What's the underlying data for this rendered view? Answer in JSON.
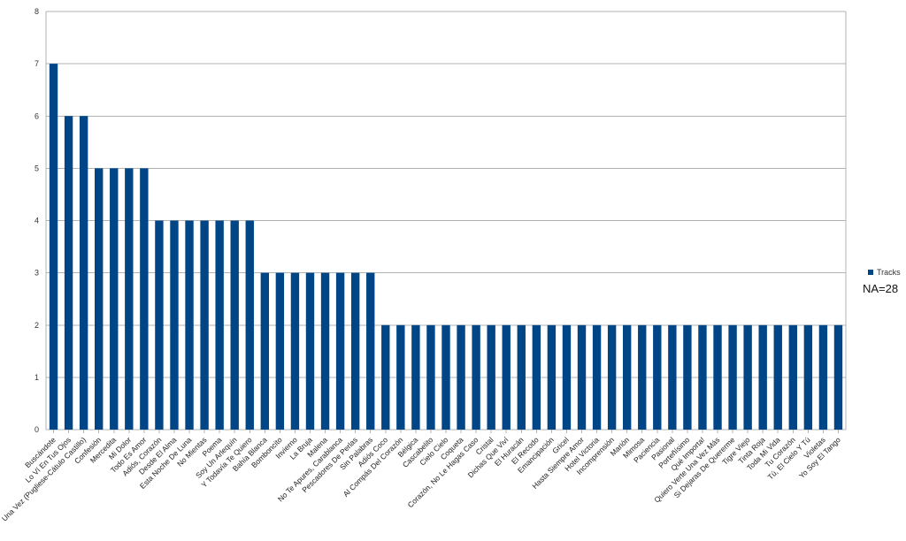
{
  "chart_data": {
    "type": "bar",
    "categories": [
      "Buscándote",
      "Lo Ví En Tus Ojos",
      "Una Vez (Pugliese-Cátulo Castillo)",
      "Confesión",
      "Mercedita",
      "Mi Dolor",
      "Todo Es Amor",
      "Adiós, Corazón",
      "Desde El Alma",
      "Esta Noche De Luna",
      "No Mientas",
      "Poema",
      "Soy Un Arlequín",
      "Y Todavía Te Quiero",
      "Bahía Blanca",
      "Bomboncito",
      "Invierno",
      "La Bruja",
      "Malena",
      "No Te Apures, Carablanca",
      "Pescadores De Perlas",
      "Sin Palabras",
      "Adiós Coco",
      "Al Compás Del Corazón",
      "Bélgica",
      "Cascabelito",
      "Cielo Cielo",
      "Coqueta",
      "Corazón, No Le Hagas Caso",
      "Cristal",
      "Dichas Que Viví",
      "El Huracán",
      "El Recodo",
      "Emancipación",
      "Gricel",
      "Hasta Siempre Amor",
      "Hotel Victoria",
      "Incomprensión",
      "Marión",
      "Mimosa",
      "Paciencia",
      "Pasional",
      "Porteñísimo",
      "Qué Importa!",
      "Quiero Verte Una Vez Más",
      "Si Dejaras De Quererme",
      "Tigre Viejo",
      "Tinta Roja",
      "Toda Mi Vida",
      "Tu Corazón",
      "Tú, El Cielo Y Tú",
      "Violetas",
      "Yo Soy El Tango"
    ],
    "series": [
      {
        "name": "Tracks",
        "color": "#004586",
        "values": [
          7,
          6,
          6,
          5,
          5,
          5,
          5,
          4,
          4,
          4,
          4,
          4,
          4,
          4,
          3,
          3,
          3,
          3,
          3,
          3,
          3,
          3,
          2,
          2,
          2,
          2,
          2,
          2,
          2,
          2,
          2,
          2,
          2,
          2,
          2,
          2,
          2,
          2,
          2,
          2,
          2,
          2,
          2,
          2,
          2,
          2,
          2,
          2,
          2,
          2,
          2,
          2,
          2
        ]
      }
    ],
    "ylim": [
      0,
      8
    ],
    "yticks": [
      "0",
      "1",
      "2",
      "3",
      "4",
      "5",
      "6",
      "7",
      "8"
    ],
    "grid": true,
    "legend_position": "right",
    "title": "",
    "xlabel": "",
    "ylabel": ""
  },
  "legend": {
    "label": "Tracks"
  },
  "note": "NA=28"
}
